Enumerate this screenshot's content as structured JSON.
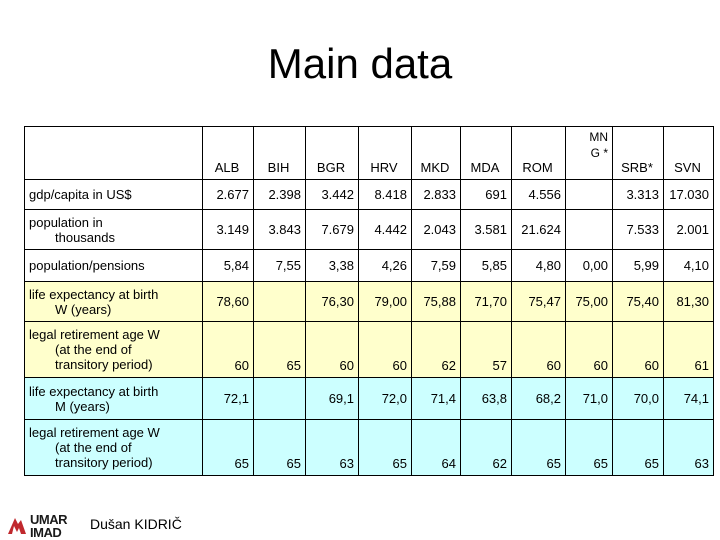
{
  "title": "Main data",
  "columns": [
    "ALB",
    "BIH",
    "BGR",
    "HRV",
    "MKD",
    "MDA",
    "ROM",
    "MNG *",
    "SRB*",
    "SVN"
  ],
  "rows": [
    {
      "label_lines": [
        "gdp/capita in US$"
      ],
      "values": [
        "2.677",
        "2.398",
        "3.442",
        "8.418",
        "2.833",
        "691",
        "4.556",
        "",
        "3.313",
        "17.030"
      ]
    },
    {
      "label_lines": [
        "population in",
        "thousands"
      ],
      "values": [
        "3.149",
        "3.843",
        "7.679",
        "4.442",
        "2.043",
        "3.581",
        "21.624",
        "",
        "7.533",
        "2.001"
      ]
    },
    {
      "label_lines": [
        "population/pensions"
      ],
      "values": [
        "5,84",
        "7,55",
        "3,38",
        "4,26",
        "7,59",
        "5,85",
        "4,80",
        "0,00",
        "5,99",
        "4,10"
      ]
    },
    {
      "label_lines": [
        "life expectancy at birth",
        "W (years)"
      ],
      "values": [
        "78,60",
        "",
        "76,30",
        "79,00",
        "75,88",
        "71,70",
        "75,47",
        "75,00",
        "75,40",
        "81,30"
      ]
    },
    {
      "label_lines": [
        "legal retirement age W",
        "(at the end of",
        "transitory period)"
      ],
      "values": [
        "60",
        "65",
        "60",
        "60",
        "62",
        "57",
        "60",
        "60",
        "60",
        "61"
      ]
    },
    {
      "label_lines": [
        "life expectancy at birth",
        "M (years)"
      ],
      "values": [
        "72,1",
        "",
        "69,1",
        "72,0",
        "71,4",
        "63,8",
        "68,2",
        "71,0",
        "70,0",
        "74,1"
      ]
    },
    {
      "label_lines": [
        "legal retirement age W",
        "(at the end of",
        "transitory period)"
      ],
      "values": [
        "65",
        "65",
        "63",
        "65",
        "64",
        "62",
        "65",
        "65",
        "65",
        "63"
      ]
    }
  ],
  "footer": {
    "logo_text": [
      "UMAR",
      "IMAD"
    ],
    "author": "Dušan KIDRIČ"
  },
  "colors": {
    "row_yellow": "#ffffcc",
    "row_blue": "#ccffff",
    "logo_red": "#c0282d"
  }
}
